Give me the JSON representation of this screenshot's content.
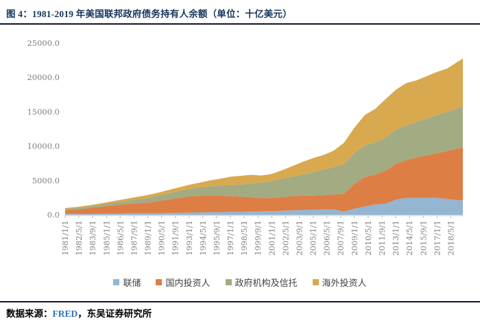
{
  "page": {
    "title": "图 4：1981-2019 年美国联邦政府债务持有人余额（单位：十亿美元）"
  },
  "footer": {
    "prefix": "数据来源：",
    "source": "FRED",
    "suffix": "，东吴证券研究所"
  },
  "chart_data": {
    "type": "area",
    "stacked": true,
    "title": "1981-2019 年美国联邦政府债务持有人余额",
    "unit_label": "十亿美元",
    "legend_position": "bottom",
    "grid": false,
    "xlim": [
      1981,
      2019.5
    ],
    "ylim": [
      0,
      25000
    ],
    "x": [
      1981,
      1982,
      1983,
      1984,
      1985,
      1986,
      1987,
      1988,
      1989,
      1990,
      1991,
      1992,
      1993,
      1994,
      1995,
      1996,
      1997,
      1998,
      1999,
      2000,
      2001,
      2002,
      2003,
      2004,
      2005,
      2006,
      2007,
      2008,
      2009,
      2010,
      2011,
      2012,
      2013,
      2014,
      2015,
      2016,
      2017,
      2018,
      2019,
      2019.5
    ],
    "series": [
      {
        "name": "联储",
        "color": "#94B6D2",
        "values": [
          120,
          135,
          150,
          160,
          170,
          190,
          220,
          230,
          230,
          240,
          270,
          300,
          330,
          360,
          380,
          400,
          430,
          450,
          480,
          510,
          530,
          600,
          660,
          700,
          740,
          780,
          800,
          480,
          900,
          1200,
          1500,
          1600,
          2200,
          2460,
          2460,
          2460,
          2460,
          2300,
          2150,
          2100
        ]
      },
      {
        "name": "国内投资人",
        "color": "#DD7E45",
        "values": [
          540,
          640,
          760,
          930,
          1100,
          1250,
          1350,
          1450,
          1550,
          1750,
          1950,
          2150,
          2350,
          2420,
          2450,
          2400,
          2300,
          2200,
          2100,
          1930,
          1920,
          2000,
          2060,
          2100,
          2070,
          2080,
          2150,
          2600,
          3600,
          4300,
          4350,
          4800,
          5200,
          5500,
          5900,
          6200,
          6500,
          7000,
          7500,
          7700
        ]
      },
      {
        "name": "政府机构及信托",
        "color": "#A3AB82",
        "values": [
          210,
          220,
          240,
          270,
          320,
          390,
          480,
          590,
          680,
          800,
          910,
          1000,
          1100,
          1210,
          1320,
          1450,
          1600,
          1750,
          1970,
          2270,
          2470,
          2660,
          2850,
          3070,
          3400,
          3700,
          4000,
          4330,
          4500,
          4590,
          4690,
          4850,
          4990,
          5040,
          5110,
          5370,
          5550,
          5700,
          5850,
          5950
        ]
      },
      {
        "name": "海外投资人",
        "color": "#D8A94E",
        "values": [
          130,
          140,
          165,
          190,
          225,
          265,
          300,
          360,
          430,
          440,
          490,
          535,
          590,
          690,
          850,
          1000,
          1230,
          1280,
          1280,
          1020,
          1040,
          1240,
          1520,
          1850,
          2050,
          2150,
          2400,
          3100,
          3690,
          4440,
          4870,
          5570,
          5800,
          6160,
          6100,
          6150,
          6300,
          6300,
          6800,
          7000
        ]
      }
    ],
    "x_tick_labels": [
      "1981/1/1",
      "1982/5/1",
      "1983/9/1",
      "1985/1/1",
      "1986/5/1",
      "1987/9/1",
      "1989/1/1",
      "1990/5/1",
      "1991/9/1",
      "1993/1/1",
      "1994/5/1",
      "1995/9/1",
      "1997/1/1",
      "1998/5/1",
      "1999/9/1",
      "2001/1/1",
      "2002/5/1",
      "2003/9/1",
      "2005/1/1",
      "2006/5/1",
      "2007/9/1",
      "2009/1/1",
      "2010/5/1",
      "2011/9/1",
      "2013/1/1",
      "2014/5/1",
      "2015/9/1",
      "2017/1/1",
      "2018/5/1"
    ],
    "y_tick_labels": [
      "0.0",
      "5000.0",
      "10000.0",
      "15000.0",
      "20000.0",
      "25000.0"
    ],
    "axis_color": "#BFBFBF",
    "tick_label_color": "#7F7F7F"
  }
}
